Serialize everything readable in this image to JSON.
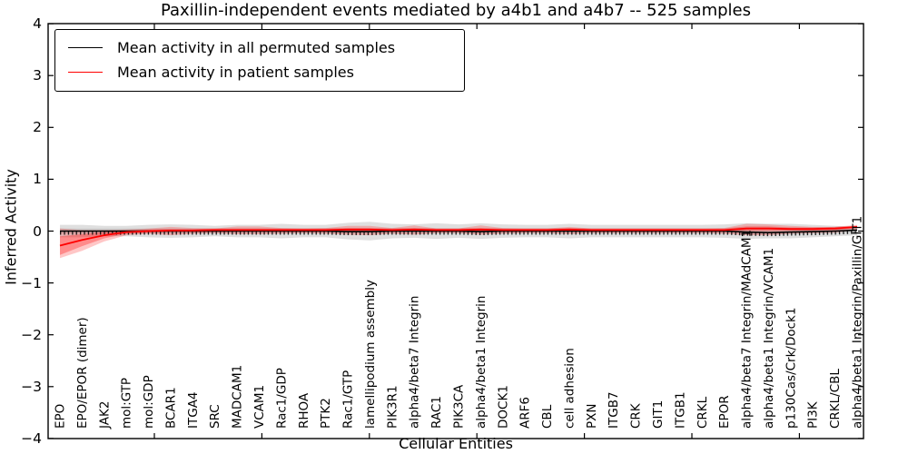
{
  "title": "Paxillin-independent events mediated by a4b1 and a4b7 -- 525 samples",
  "axes": {
    "ylabel": "Inferred Activity",
    "xlabel": "Cellular Entities",
    "yticks": [
      "4",
      "3",
      "2",
      "1",
      "0",
      "−1",
      "−2",
      "−3",
      "−4"
    ],
    "ytick_values": [
      4,
      3,
      2,
      1,
      0,
      -1,
      -2,
      -3,
      -4
    ]
  },
  "legend": {
    "items": [
      {
        "label": "Mean activity in all permuted samples",
        "color": "#000000"
      },
      {
        "label": "Mean activity in patient samples",
        "color": "#ff0000"
      }
    ]
  },
  "colors": {
    "permuted_line": "#000000",
    "patient_line": "#ff0000",
    "permuted_band_outer": "rgba(140,140,140,0.28)",
    "permuted_band_inner": "rgba(140,140,140,0.22)",
    "patient_band_outer": "rgba(255,0,0,0.22)",
    "patient_band_inner": "rgba(255,0,0,0.30)",
    "spine": "#000000"
  },
  "chart_data": {
    "type": "line",
    "title": "Paxillin-independent events mediated by a4b1 and a4b7 -- 525 samples",
    "xlabel": "Cellular Entities",
    "ylabel": "Inferred Activity",
    "ylim": [
      -4,
      4
    ],
    "grid": false,
    "legend_position": "upper left",
    "categories": [
      "EPO",
      "EPO/EPOR (dimer)",
      "JAK2",
      "mol:GTP",
      "mol:GDP",
      "BCAR1",
      "ITGA4",
      "SRC",
      "MADCAM1",
      "VCAM1",
      "Rac1/GDP",
      "RHOA",
      "PTK2",
      "Rac1/GTP",
      "lamellipodium assembly",
      "PIK3R1",
      "alpha4/beta7 Integrin",
      "RAC1",
      "PIK3CA",
      "alpha4/beta1 Integrin",
      "DOCK1",
      "ARF6",
      "CBL",
      "cell adhesion",
      "PXN",
      "ITGB7",
      "CRK",
      "GIT1",
      "ITGB1",
      "CRKL",
      "EPOR",
      "alpha4/beta7 Integrin/MAdCAM1",
      "alpha4/beta1 Integrin/VCAM1",
      "p130Cas/Crk/Dock1",
      "PI3K",
      "CRKL/CBL",
      "alpha4/beta1 Integrin/Paxillin/GIT1"
    ],
    "series": [
      {
        "name": "Mean activity in all permuted samples",
        "color": "#000000",
        "values": [
          0,
          0,
          0,
          0,
          0,
          0,
          0,
          0,
          0,
          0,
          0,
          0,
          0,
          -0.01,
          -0.01,
          0,
          0,
          0,
          0,
          -0.01,
          0,
          0,
          0,
          0,
          0,
          0,
          0,
          0,
          0,
          0,
          0,
          -0.02,
          -0.03,
          -0.02,
          -0.01,
          0,
          0.02
        ],
        "band_upper": [
          0.12,
          0.12,
          0.1,
          0.1,
          0.12,
          0.13,
          0.12,
          0.1,
          0.12,
          0.12,
          0.14,
          0.12,
          0.12,
          0.16,
          0.18,
          0.14,
          0.13,
          0.15,
          0.13,
          0.15,
          0.13,
          0.12,
          0.12,
          0.14,
          0.12,
          0.12,
          0.12,
          0.12,
          0.12,
          0.12,
          0.13,
          0.15,
          0.14,
          0.14,
          0.12,
          0.1,
          0.08
        ],
        "band_lower": [
          -0.12,
          -0.12,
          -0.1,
          -0.1,
          -0.12,
          -0.13,
          -0.12,
          -0.1,
          -0.12,
          -0.12,
          -0.14,
          -0.12,
          -0.12,
          -0.16,
          -0.18,
          -0.14,
          -0.13,
          -0.15,
          -0.13,
          -0.15,
          -0.13,
          -0.12,
          -0.12,
          -0.14,
          -0.12,
          -0.12,
          -0.12,
          -0.12,
          -0.12,
          -0.12,
          -0.13,
          -0.15,
          -0.14,
          -0.14,
          -0.12,
          -0.1,
          -0.08
        ],
        "inner_band_half": 0.05
      },
      {
        "name": "Mean activity in patient samples",
        "color": "#ff0000",
        "values": [
          -0.28,
          -0.17,
          -0.08,
          -0.02,
          0.0,
          0.01,
          0.01,
          0.02,
          0.02,
          0.02,
          0.02,
          0.02,
          0.02,
          0.03,
          0.03,
          0.02,
          0.03,
          0.02,
          0.02,
          0.03,
          0.02,
          0.02,
          0.02,
          0.03,
          0.02,
          0.02,
          0.02,
          0.02,
          0.02,
          0.02,
          0.02,
          0.05,
          0.05,
          0.04,
          0.04,
          0.05,
          0.08
        ],
        "band_upper": [
          0.05,
          0.02,
          0.02,
          0.03,
          0.05,
          0.08,
          0.06,
          0.05,
          0.09,
          0.09,
          0.06,
          0.05,
          0.06,
          0.1,
          0.1,
          0.06,
          0.11,
          0.05,
          0.05,
          0.11,
          0.06,
          0.05,
          0.05,
          0.08,
          0.05,
          0.05,
          0.05,
          0.05,
          0.05,
          0.05,
          0.06,
          0.14,
          0.13,
          0.1,
          0.08,
          0.08,
          0.12
        ],
        "band_lower": [
          -0.52,
          -0.38,
          -0.2,
          -0.08,
          -0.05,
          -0.08,
          -0.05,
          -0.04,
          -0.06,
          -0.06,
          -0.05,
          -0.04,
          -0.05,
          -0.07,
          -0.08,
          -0.05,
          -0.07,
          -0.04,
          -0.04,
          -0.07,
          -0.05,
          -0.04,
          -0.04,
          -0.06,
          -0.04,
          -0.04,
          -0.04,
          -0.04,
          -0.04,
          -0.04,
          -0.05,
          -0.08,
          -0.08,
          -0.05,
          -0.04,
          -0.03,
          0.02
        ],
        "inner_band_upper": [
          -0.1,
          -0.06,
          -0.02,
          0.01,
          0.03,
          0.04,
          0.04,
          0.05,
          0.05,
          0.05,
          0.05,
          0.05,
          0.05,
          0.06,
          0.06,
          0.05,
          0.06,
          0.05,
          0.05,
          0.06,
          0.05,
          0.05,
          0.05,
          0.06,
          0.05,
          0.05,
          0.05,
          0.05,
          0.05,
          0.05,
          0.05,
          0.09,
          0.09,
          0.07,
          0.07,
          0.08,
          0.1
        ],
        "inner_band_lower": [
          -0.46,
          -0.29,
          -0.14,
          -0.05,
          -0.03,
          -0.02,
          -0.02,
          -0.01,
          -0.01,
          -0.01,
          -0.01,
          -0.01,
          -0.01,
          0.0,
          0.0,
          -0.01,
          0.0,
          -0.01,
          -0.01,
          0.0,
          -0.01,
          -0.01,
          -0.01,
          0.0,
          -0.01,
          -0.01,
          -0.01,
          -0.01,
          -0.01,
          -0.01,
          -0.01,
          0.01,
          0.01,
          0.01,
          0.01,
          0.02,
          0.06
        ]
      }
    ]
  }
}
